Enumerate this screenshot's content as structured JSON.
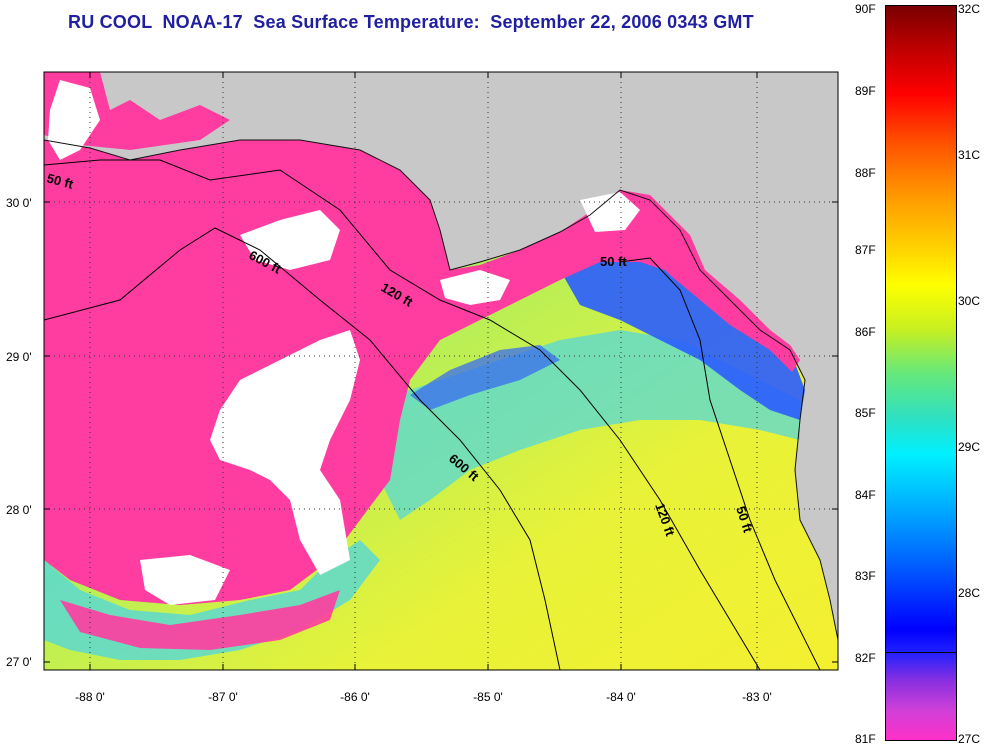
{
  "title": "RU COOL  NOAA-17  Sea Surface Temperature:  September 22, 2006 0343 GMT",
  "latitude_labels": [
    "30 0'",
    "29 0'",
    "28 0'",
    "27 0'"
  ],
  "longitude_labels": [
    "-88 0'",
    "-87 0'",
    "-86 0'",
    "-85 0'",
    "-84 0'",
    "-83 0'"
  ],
  "contour_labels": {
    "west_50ft": "50 ft",
    "west_600ft": "600 ft",
    "west_120ft": "120 ft",
    "east_50ft": "50 ft",
    "south_600ft": "600 ft",
    "south_120ft": "120 ft",
    "south_50ft": "50 ft"
  },
  "colorbar": {
    "fahrenheit": [
      "90F",
      "89F",
      "88F",
      "87F",
      "86F",
      "85F",
      "84F",
      "83F",
      "82F",
      "81F"
    ],
    "celsius": [
      "32C",
      "31C",
      "30C",
      "29C",
      "28C",
      "27C"
    ]
  },
  "colors": {
    "land": "#c8c8c8",
    "cloud": "#ffffff",
    "cold_water": "#ff3ca0",
    "cool_water": "#2a5cff",
    "mid_water": "#5ce6c8",
    "warm_water": "#e6f23c",
    "title": "#1f1fa0"
  }
}
